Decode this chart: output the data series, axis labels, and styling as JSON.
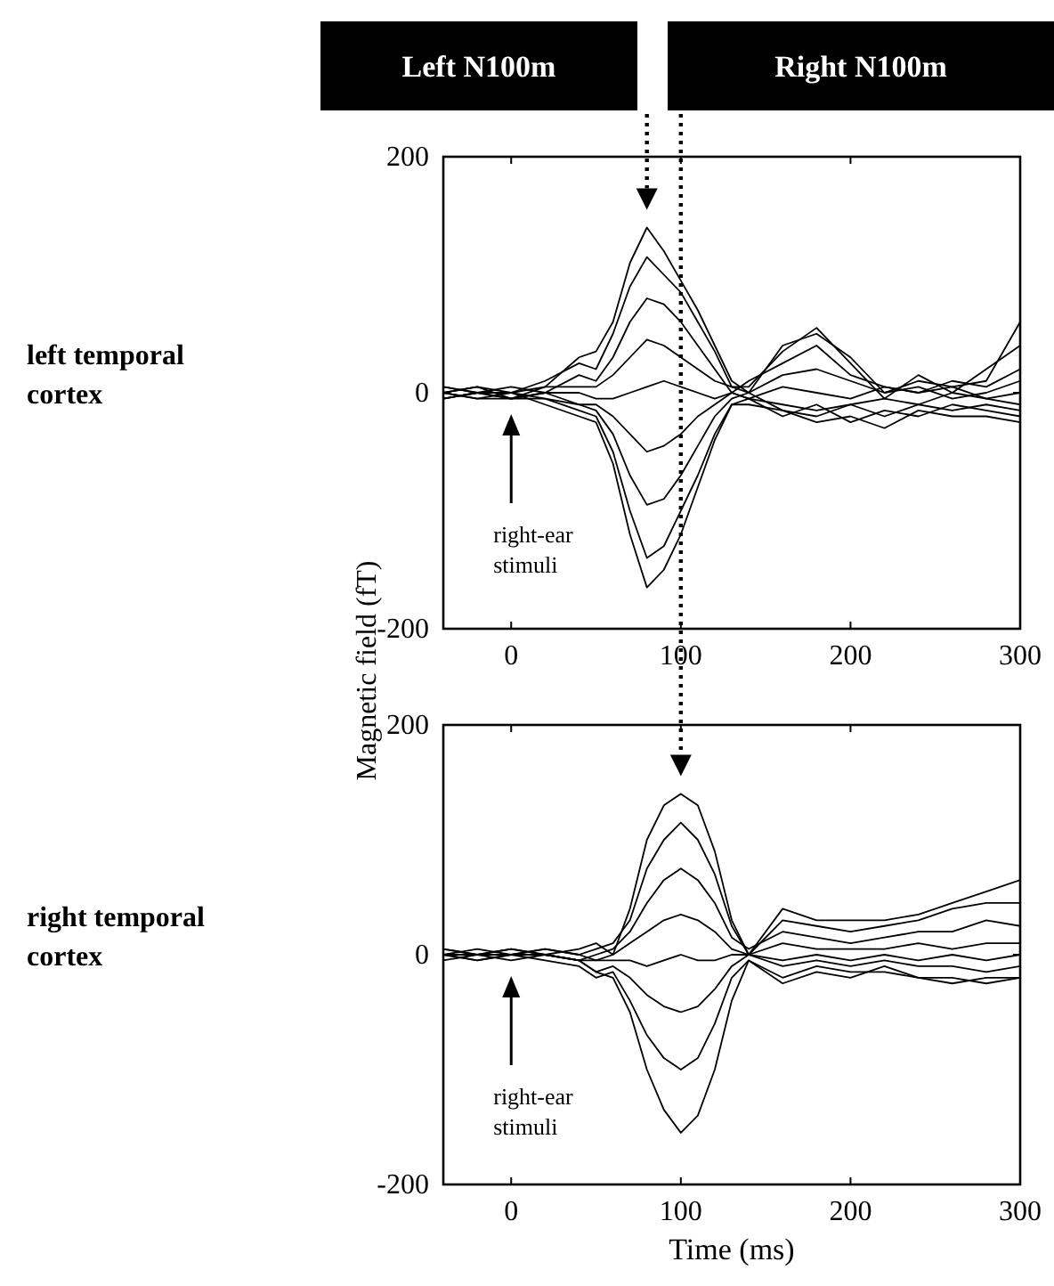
{
  "chart_data": [
    {
      "type": "line",
      "ylabel": "Magnetic field (fT)",
      "x": [
        -40,
        -20,
        0,
        20,
        40,
        50,
        60,
        70,
        80,
        90,
        100,
        110,
        120,
        130,
        140,
        160,
        180,
        200,
        220,
        240,
        260,
        280,
        300
      ],
      "xlim": [
        -40,
        300
      ],
      "ylim": [
        -200,
        200
      ],
      "xticks": [
        0,
        100,
        200,
        300
      ],
      "yticks": [
        -200,
        0,
        200
      ],
      "series": [
        {
          "color": "#000000",
          "values": [
            5,
            0,
            -5,
            5,
            30,
            35,
            60,
            110,
            140,
            120,
            95,
            70,
            40,
            10,
            0,
            40,
            50,
            30,
            0,
            10,
            5,
            10,
            60
          ]
        },
        {
          "color": "#000000",
          "values": [
            0,
            5,
            0,
            10,
            25,
            20,
            50,
            90,
            115,
            100,
            85,
            60,
            35,
            5,
            5,
            35,
            55,
            25,
            -5,
            15,
            0,
            20,
            40
          ]
        },
        {
          "color": "#000000",
          "values": [
            -5,
            0,
            5,
            0,
            15,
            10,
            30,
            60,
            80,
            75,
            60,
            40,
            20,
            0,
            10,
            25,
            40,
            15,
            5,
            0,
            10,
            5,
            20
          ]
        },
        {
          "color": "#000000",
          "values": [
            0,
            -5,
            0,
            5,
            5,
            5,
            15,
            30,
            45,
            40,
            30,
            20,
            10,
            5,
            0,
            15,
            20,
            10,
            0,
            5,
            -5,
            0,
            10
          ]
        },
        {
          "color": "#000000",
          "values": [
            5,
            0,
            -5,
            0,
            0,
            -5,
            -5,
            0,
            5,
            10,
            5,
            0,
            -5,
            0,
            -5,
            5,
            0,
            -5,
            5,
            0,
            5,
            -5,
            0
          ]
        },
        {
          "color": "#000000",
          "values": [
            -5,
            0,
            0,
            -5,
            -10,
            -10,
            -20,
            -35,
            -50,
            -45,
            -35,
            -20,
            -10,
            0,
            -5,
            -10,
            -15,
            -10,
            -5,
            -10,
            0,
            -5,
            -10
          ]
        },
        {
          "color": "#000000",
          "values": [
            0,
            -5,
            -5,
            0,
            -10,
            -15,
            -35,
            -70,
            -95,
            -90,
            -70,
            -45,
            -20,
            -5,
            0,
            -15,
            -20,
            -10,
            -20,
            -10,
            -15,
            -10,
            -15
          ]
        },
        {
          "color": "#000000",
          "values": [
            0,
            5,
            -5,
            -5,
            -15,
            -20,
            -50,
            -100,
            -140,
            -130,
            -100,
            -70,
            -35,
            -10,
            -5,
            -20,
            -10,
            -25,
            -15,
            -20,
            -10,
            -15,
            -20
          ]
        },
        {
          "color": "#000000",
          "values": [
            -5,
            0,
            0,
            -10,
            -20,
            -25,
            -60,
            -120,
            -165,
            -150,
            -120,
            -80,
            -40,
            -10,
            -10,
            -15,
            -25,
            -20,
            -30,
            -15,
            -20,
            -20,
            -25
          ]
        }
      ],
      "annotations": [
        "left temporal cortex",
        "Left N100m",
        "right-ear stimuli"
      ]
    },
    {
      "type": "line",
      "xlabel": "Time (ms)",
      "x": [
        -40,
        -20,
        0,
        20,
        40,
        50,
        60,
        70,
        80,
        90,
        100,
        110,
        120,
        130,
        140,
        160,
        180,
        200,
        220,
        240,
        260,
        280,
        300
      ],
      "xlim": [
        -40,
        300
      ],
      "ylim": [
        -200,
        200
      ],
      "xticks": [
        0,
        100,
        200,
        300
      ],
      "yticks": [
        -200,
        0,
        200
      ],
      "series": [
        {
          "color": "#000000",
          "values": [
            5,
            0,
            5,
            0,
            5,
            10,
            0,
            40,
            100,
            130,
            140,
            130,
            90,
            30,
            0,
            40,
            30,
            30,
            30,
            35,
            45,
            55,
            65
          ]
        },
        {
          "color": "#000000",
          "values": [
            0,
            5,
            0,
            5,
            0,
            5,
            10,
            30,
            75,
            100,
            115,
            100,
            70,
            25,
            0,
            30,
            25,
            20,
            25,
            30,
            40,
            45,
            45
          ]
        },
        {
          "color": "#000000",
          "values": [
            0,
            0,
            5,
            0,
            -5,
            0,
            5,
            20,
            45,
            65,
            75,
            65,
            45,
            15,
            5,
            20,
            15,
            10,
            15,
            20,
            20,
            30,
            25
          ]
        },
        {
          "color": "#000000",
          "values": [
            5,
            0,
            0,
            5,
            0,
            -5,
            0,
            10,
            20,
            30,
            35,
            30,
            20,
            5,
            0,
            10,
            5,
            5,
            5,
            10,
            5,
            10,
            10
          ]
        },
        {
          "color": "#000000",
          "values": [
            0,
            -5,
            0,
            0,
            -5,
            -5,
            -5,
            -5,
            -10,
            -5,
            0,
            -5,
            -5,
            0,
            0,
            -5,
            0,
            -5,
            0,
            -5,
            0,
            -5,
            0
          ]
        },
        {
          "color": "#000000",
          "values": [
            0,
            0,
            -5,
            0,
            -5,
            -15,
            -10,
            -20,
            -35,
            -45,
            -50,
            -45,
            -30,
            -10,
            0,
            -10,
            -5,
            -10,
            -5,
            -10,
            -10,
            -15,
            -10
          ]
        },
        {
          "color": "#000000",
          "values": [
            -5,
            0,
            0,
            -5,
            -10,
            -20,
            -15,
            -40,
            -70,
            -90,
            -100,
            -90,
            -60,
            -20,
            -5,
            -20,
            -10,
            -15,
            -15,
            -20,
            -20,
            -25,
            -20
          ]
        },
        {
          "color": "#000000",
          "values": [
            0,
            -5,
            0,
            0,
            -5,
            -15,
            -20,
            -50,
            -100,
            -135,
            -155,
            -140,
            -100,
            -40,
            -5,
            -25,
            -15,
            -20,
            -10,
            -20,
            -25,
            -20,
            -20
          ]
        }
      ],
      "annotations": [
        "right temporal cortex",
        "Right N100m",
        "right-ear stimuli"
      ]
    }
  ]
}
